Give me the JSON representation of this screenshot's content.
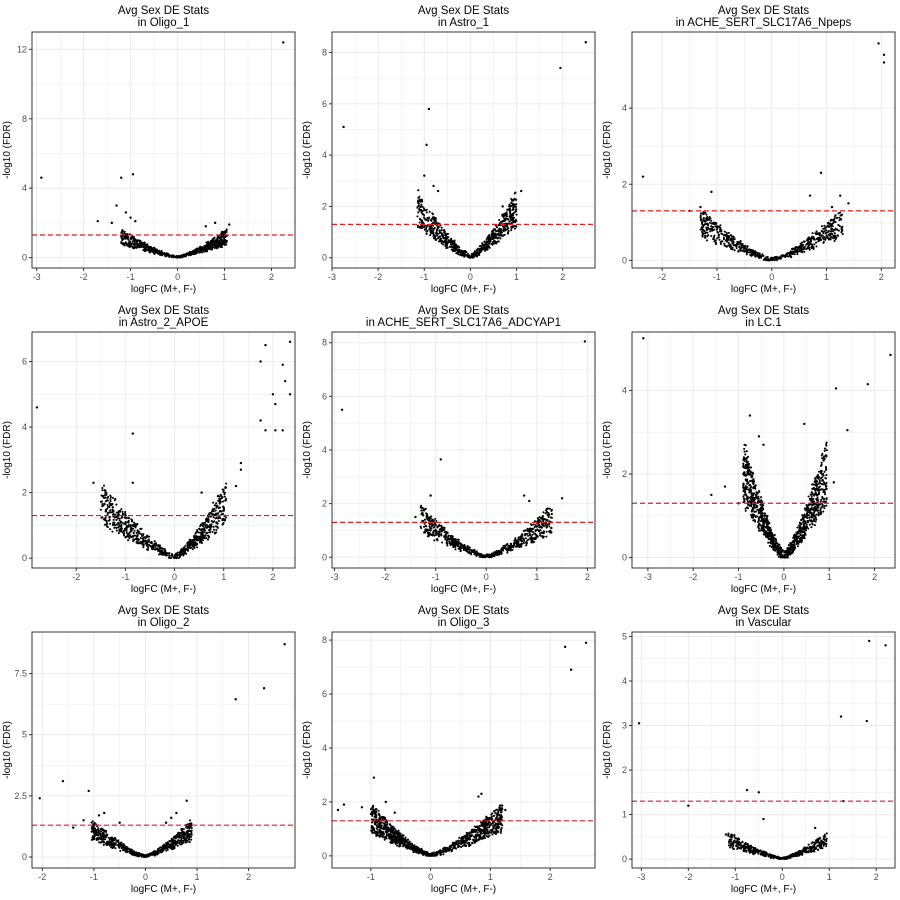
{
  "style": {
    "point_color": "#000000",
    "threshold_color": "#e41a1c",
    "grid_color": "#ebebeb",
    "border_color": "#333333"
  },
  "chart_data": [
    {
      "type": "scatter",
      "title": "Avg Sex DE Stats",
      "subtitle": "in Oligo_1",
      "xlabel": "logFC (M+, F-)",
      "ylabel": "-log10 (FDR)",
      "xlim": [
        -3.1,
        2.5
      ],
      "ylim": [
        -0.6,
        13.0
      ],
      "xticks": [
        -3,
        -2,
        -1,
        0,
        1,
        2
      ],
      "yticks": [
        0,
        4,
        8,
        12
      ],
      "threshold": 1.3,
      "grid": true,
      "points": [
        [
          -2.9,
          4.6
        ],
        [
          2.25,
          12.4
        ],
        [
          -1.2,
          4.6
        ],
        [
          -0.95,
          4.8
        ],
        [
          -1.4,
          2.0
        ],
        [
          -1.7,
          2.1
        ],
        [
          -1.3,
          3.0
        ],
        [
          -1.1,
          2.6
        ],
        [
          -1.0,
          2.3
        ],
        [
          -0.9,
          2.1
        ],
        [
          0.8,
          2.0
        ],
        [
          1.1,
          1.9
        ],
        [
          0.6,
          1.8
        ]
      ],
      "cloud": {
        "xmin": -1.2,
        "xmax": 1.05,
        "ymax": 1.6,
        "n": 700,
        "seed": 11
      }
    },
    {
      "type": "scatter",
      "title": "Avg Sex DE Stats",
      "subtitle": "in Astro_1",
      "xlabel": "logFC (M+, F-)",
      "ylabel": "-log10 (FDR)",
      "xlim": [
        -3.0,
        2.7
      ],
      "ylim": [
        -0.4,
        8.8
      ],
      "xticks": [
        -3,
        -2,
        -1,
        0,
        1,
        2
      ],
      "yticks": [
        0,
        2,
        4,
        6,
        8
      ],
      "threshold": 1.3,
      "grid": true,
      "points": [
        [
          -2.75,
          5.1
        ],
        [
          2.5,
          8.4
        ],
        [
          1.95,
          7.4
        ],
        [
          -0.9,
          5.8
        ],
        [
          -0.95,
          4.4
        ],
        [
          -1.0,
          3.2
        ],
        [
          1.1,
          2.6
        ],
        [
          -0.7,
          2.6
        ],
        [
          -0.8,
          2.8
        ],
        [
          -1.05,
          2.2
        ],
        [
          0.7,
          2.0
        ]
      ],
      "cloud": {
        "xmin": -1.15,
        "xmax": 1.0,
        "ymax": 2.6,
        "n": 750,
        "seed": 22
      }
    },
    {
      "type": "scatter",
      "title": "Avg Sex DE Stats",
      "subtitle": "in ACHE_SERT_SLC17A6_Npeps",
      "xlabel": "logFC (M+, F-)",
      "ylabel": "-log10 (FDR)",
      "xlim": [
        -2.55,
        2.25
      ],
      "ylim": [
        -0.2,
        6.0
      ],
      "xticks": [
        -2,
        -1,
        0,
        1,
        2
      ],
      "yticks": [
        0,
        2,
        4
      ],
      "threshold": 1.3,
      "grid": true,
      "points": [
        [
          -2.35,
          2.2
        ],
        [
          1.95,
          5.7
        ],
        [
          2.05,
          5.4
        ],
        [
          2.05,
          5.2
        ],
        [
          0.9,
          2.3
        ],
        [
          1.25,
          1.7
        ],
        [
          1.4,
          1.5
        ],
        [
          -1.3,
          1.4
        ],
        [
          -1.1,
          1.8
        ],
        [
          0.7,
          1.7
        ],
        [
          -1.5,
          1.3
        ],
        [
          1.1,
          1.4
        ]
      ],
      "cloud": {
        "xmin": -1.3,
        "xmax": 1.3,
        "ymax": 1.35,
        "n": 650,
        "seed": 33
      }
    },
    {
      "type": "scatter",
      "title": "Avg Sex DE Stats",
      "subtitle": "in Astro_2_APOE",
      "xlabel": "logFC (M+, F-)",
      "ylabel": "-log10 (FDR)",
      "xlim": [
        -2.9,
        2.45
      ],
      "ylim": [
        -0.3,
        6.9
      ],
      "xticks": [
        -2,
        -1,
        0,
        1,
        2
      ],
      "yticks": [
        0,
        2,
        4,
        6
      ],
      "threshold": 1.3,
      "grid": true,
      "points": [
        [
          -2.8,
          4.6
        ],
        [
          2.35,
          6.6
        ],
        [
          1.85,
          6.5
        ],
        [
          1.75,
          6.0
        ],
        [
          2.2,
          5.9
        ],
        [
          2.25,
          5.4
        ],
        [
          2.0,
          5.0
        ],
        [
          2.35,
          5.0
        ],
        [
          2.05,
          4.7
        ],
        [
          1.75,
          4.2
        ],
        [
          1.85,
          3.9
        ],
        [
          2.05,
          3.9
        ],
        [
          2.2,
          3.9
        ],
        [
          -0.85,
          3.8
        ],
        [
          1.35,
          2.9
        ],
        [
          1.35,
          2.7
        ],
        [
          1.25,
          2.2
        ],
        [
          -1.65,
          2.3
        ],
        [
          -0.85,
          2.3
        ],
        [
          0.55,
          2.0
        ]
      ],
      "cloud": {
        "xmin": -1.5,
        "xmax": 1.05,
        "ymax": 2.3,
        "n": 800,
        "seed": 44
      }
    },
    {
      "type": "scatter",
      "title": "Avg Sex DE Stats",
      "subtitle": "in ACHE_SERT_SLC17A6_ADCYAP1",
      "xlabel": "logFC (M+, F-)",
      "ylabel": "-log10 (FDR)",
      "xlim": [
        -3.05,
        2.15
      ],
      "ylim": [
        -0.4,
        8.4
      ],
      "xticks": [
        -3,
        -2,
        -1,
        0,
        1,
        2
      ],
      "yticks": [
        0,
        2,
        4,
        6,
        8
      ],
      "threshold": 1.3,
      "grid": true,
      "points": [
        [
          -2.85,
          5.5
        ],
        [
          1.95,
          8.05
        ],
        [
          -0.9,
          3.65
        ],
        [
          1.5,
          2.2
        ],
        [
          -1.1,
          2.3
        ],
        [
          0.75,
          2.3
        ],
        [
          0.85,
          2.1
        ],
        [
          1.2,
          1.8
        ],
        [
          -1.4,
          1.5
        ],
        [
          -1.2,
          1.8
        ]
      ],
      "cloud": {
        "xmin": -1.3,
        "xmax": 1.3,
        "ymax": 1.9,
        "n": 700,
        "seed": 55
      }
    },
    {
      "type": "scatter",
      "title": "Avg Sex DE Stats",
      "subtitle": "in LC.1",
      "xlabel": "logFC (M+, F-)",
      "ylabel": "-log10 (FDR)",
      "xlim": [
        -3.35,
        2.45
      ],
      "ylim": [
        -0.25,
        5.4
      ],
      "xticks": [
        -3,
        -2,
        -1,
        0,
        1,
        2
      ],
      "yticks": [
        0,
        2,
        4
      ],
      "threshold": 1.3,
      "grid": true,
      "points": [
        [
          -3.1,
          5.25
        ],
        [
          2.35,
          4.85
        ],
        [
          1.85,
          4.15
        ],
        [
          1.15,
          4.05
        ],
        [
          1.4,
          3.05
        ],
        [
          -0.75,
          3.4
        ],
        [
          -0.55,
          2.9
        ],
        [
          0.45,
          3.2
        ],
        [
          -0.45,
          2.7
        ],
        [
          1.1,
          1.8
        ],
        [
          -1.6,
          1.5
        ],
        [
          -1.3,
          1.7
        ],
        [
          -1.0,
          1.3
        ]
      ],
      "cloud": {
        "xmin": -0.9,
        "xmax": 0.95,
        "ymax": 2.8,
        "n": 1100,
        "seed": 66
      }
    },
    {
      "type": "scatter",
      "title": "Avg Sex DE Stats",
      "subtitle": "in Oligo_2",
      "xlabel": "logFC (M+, F-)",
      "ylabel": "-log10 (FDR)",
      "xlim": [
        -2.2,
        2.9
      ],
      "ylim": [
        -0.45,
        9.2
      ],
      "xticks": [
        -2,
        -1,
        0,
        1,
        2
      ],
      "yticks": [
        0.0,
        2.5,
        5.0,
        7.5
      ],
      "threshold": 1.3,
      "grid": true,
      "points": [
        [
          -2.05,
          2.4
        ],
        [
          2.7,
          8.7
        ],
        [
          2.3,
          6.9
        ],
        [
          1.75,
          6.45
        ],
        [
          -1.6,
          3.1
        ],
        [
          -1.1,
          2.7
        ],
        [
          0.8,
          2.3
        ],
        [
          -0.8,
          1.8
        ],
        [
          -0.9,
          1.7
        ],
        [
          0.6,
          1.8
        ],
        [
          -1.4,
          1.2
        ],
        [
          -1.2,
          1.5
        ],
        [
          0.5,
          1.6
        ],
        [
          -0.5,
          1.4
        ],
        [
          0.4,
          1.4
        ]
      ],
      "cloud": {
        "xmin": -1.05,
        "xmax": 0.9,
        "ymax": 1.5,
        "n": 650,
        "seed": 77
      }
    },
    {
      "type": "scatter",
      "title": "Avg Sex DE Stats",
      "subtitle": "in Oligo_3",
      "xlabel": "logFC (M+, F-)",
      "ylabel": "-log10 (FDR)",
      "xlim": [
        -1.65,
        2.75
      ],
      "ylim": [
        -0.45,
        8.3
      ],
      "xticks": [
        -1,
        0,
        1,
        2
      ],
      "yticks": [
        0,
        2,
        4,
        6,
        8
      ],
      "threshold": 1.3,
      "grid": true,
      "points": [
        [
          -1.55,
          1.7
        ],
        [
          2.6,
          7.9
        ],
        [
          2.25,
          7.75
        ],
        [
          2.35,
          6.9
        ],
        [
          -0.95,
          2.9
        ],
        [
          -1.45,
          1.9
        ],
        [
          0.85,
          2.3
        ],
        [
          0.8,
          2.2
        ],
        [
          1.25,
          1.7
        ],
        [
          -1.15,
          1.8
        ],
        [
          -0.75,
          2.0
        ],
        [
          1.1,
          1.4
        ],
        [
          -0.6,
          1.6
        ]
      ],
      "cloud": {
        "xmin": -1.0,
        "xmax": 1.2,
        "ymax": 1.9,
        "n": 1100,
        "seed": 88
      }
    },
    {
      "type": "scatter",
      "title": "Avg Sex DE Stats",
      "subtitle": "in Vascular",
      "xlabel": "logFC (M+, F-)",
      "ylabel": "-log10 (FDR)",
      "xlim": [
        -3.2,
        2.4
      ],
      "ylim": [
        -0.2,
        5.1
      ],
      "xticks": [
        -3,
        -2,
        -1,
        0,
        1,
        2
      ],
      "yticks": [
        0,
        1,
        2,
        3,
        4,
        5
      ],
      "threshold": 1.3,
      "grid": true,
      "points": [
        [
          -3.05,
          3.05
        ],
        [
          1.85,
          4.9
        ],
        [
          2.2,
          4.8
        ],
        [
          1.25,
          3.2
        ],
        [
          1.8,
          3.1
        ],
        [
          -0.5,
          1.5
        ],
        [
          -0.75,
          1.55
        ],
        [
          -2.0,
          1.2
        ],
        [
          1.3,
          1.3
        ],
        [
          -0.4,
          0.9
        ],
        [
          -1.2,
          0.55
        ],
        [
          0.7,
          0.7
        ]
      ],
      "cloud": {
        "xmin": -1.15,
        "xmax": 0.95,
        "ymax": 0.6,
        "n": 500,
        "seed": 99
      }
    }
  ]
}
